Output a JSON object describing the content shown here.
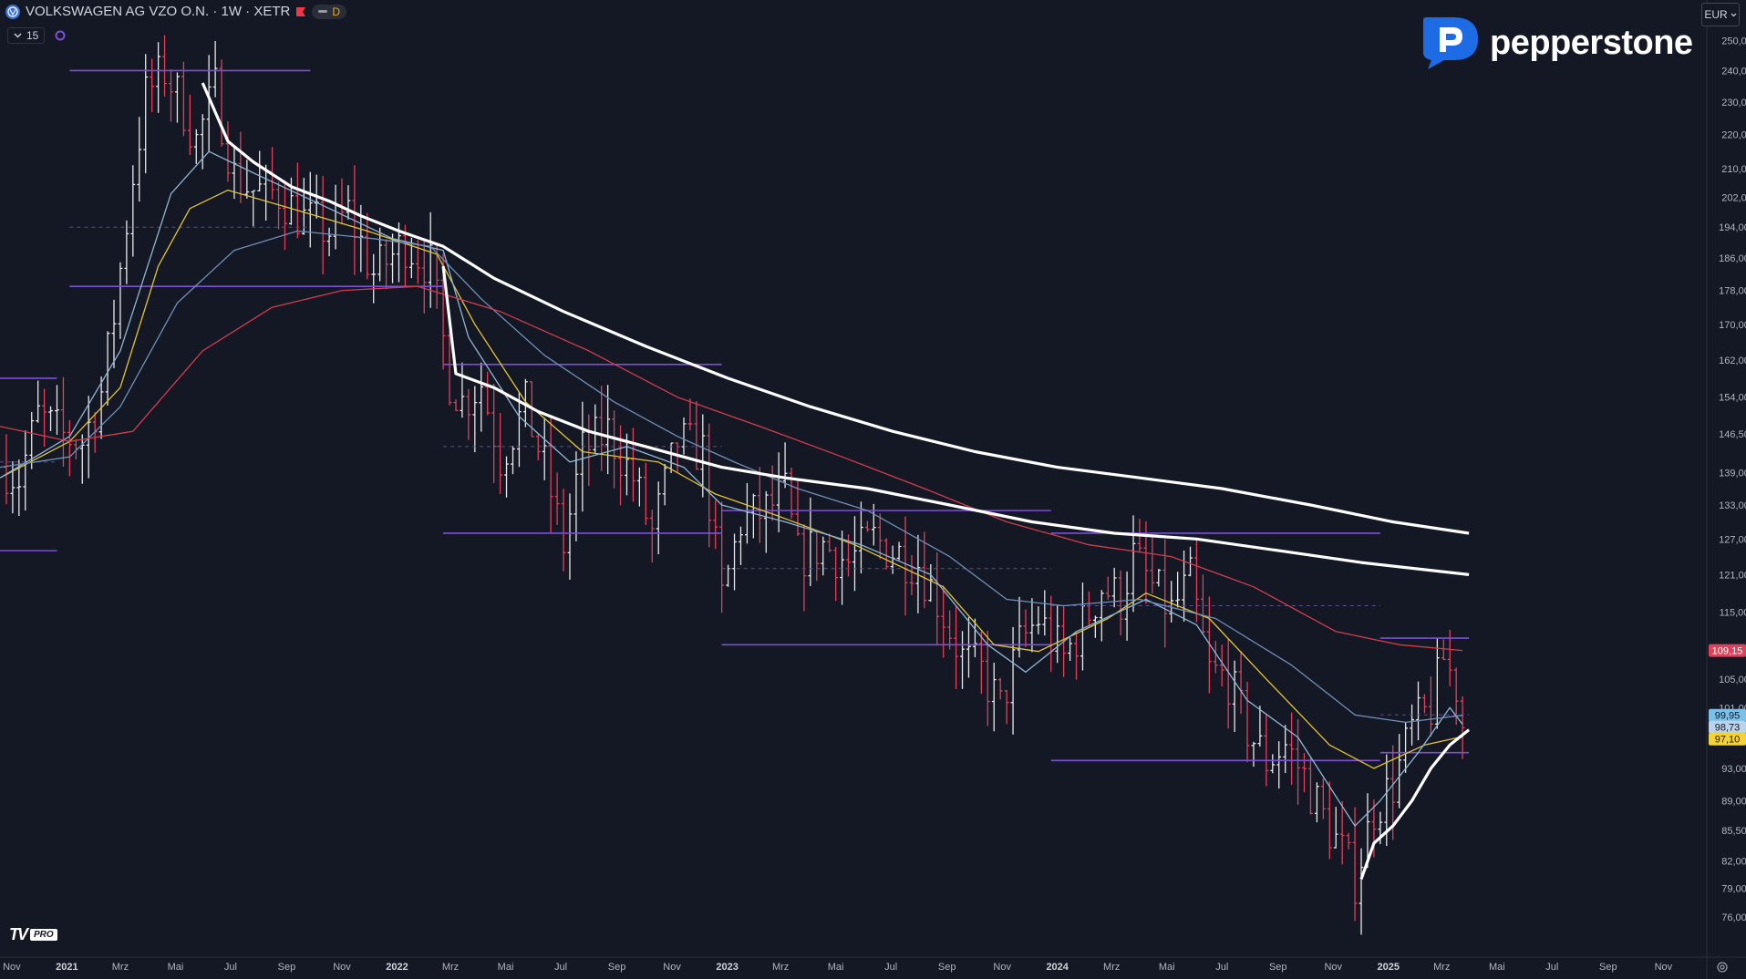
{
  "header": {
    "symbol": "VOLKSWAGEN AG VZO O.N. · 1W · XETR",
    "badge_letter": "D",
    "indicator_count": "15",
    "currency": "EUR"
  },
  "brand": {
    "name": "pepperstone"
  },
  "footer": {
    "platform": "TV",
    "tier": "PRO"
  },
  "colors": {
    "background": "#141824",
    "up_bar": "#e8e8e8",
    "down_bar": "#e0415a",
    "support_line": "#7b4fd6",
    "ma_yellow": "#e0c43a",
    "ma_lightblue": "#8fb6d6",
    "ma_blue": "#6f8fb8",
    "ma_red": "#d23d4c",
    "ma_white": "#ffffff"
  },
  "chart_data": {
    "type": "candlestick",
    "title": "VOLKSWAGEN AG VZO O.N. · 1W · XETR",
    "scale": "log",
    "ylim": [
      74.5,
      252
    ],
    "y_ticks": [
      "250,0",
      "240,0",
      "230,0",
      "220,0",
      "210,0",
      "202,0",
      "194,00",
      "186,00",
      "178,00",
      "170,00",
      "162,00",
      "154,00",
      "146,50",
      "139,00",
      "133,00",
      "127,00",
      "121,00",
      "115,00",
      "109,15",
      "105,00",
      "101,00",
      "93,00",
      "89,00",
      "85,50",
      "82,00",
      "79,00",
      "76,00"
    ],
    "x_labels": [
      "Nov",
      "2021",
      "Mrz",
      "Mai",
      "Jul",
      "Sep",
      "Nov",
      "2022",
      "Mrz",
      "Mai",
      "Jul",
      "Sep",
      "Nov",
      "2023",
      "Mrz",
      "Mai",
      "Jul",
      "Sep",
      "Nov",
      "2024",
      "Mrz",
      "Mai",
      "Jul",
      "Sep",
      "Nov",
      "2025",
      "Mrz",
      "Mai",
      "Jul",
      "Sep",
      "Nov"
    ],
    "x_range": [
      "2020-10-19",
      "2025-12-15"
    ],
    "x_label_dates": [
      "2020-11-01",
      "2021-01-01",
      "2021-03-01",
      "2021-05-01",
      "2021-07-01",
      "2021-09-01",
      "2021-11-01",
      "2022-01-01",
      "2022-03-01",
      "2022-05-01",
      "2022-07-01",
      "2022-09-01",
      "2022-11-01",
      "2023-01-01",
      "2023-03-01",
      "2023-05-01",
      "2023-07-01",
      "2023-09-01",
      "2023-11-01",
      "2024-01-01",
      "2024-03-01",
      "2024-05-01",
      "2024-07-01",
      "2024-09-01",
      "2024-11-01",
      "2025-01-01",
      "2025-03-01",
      "2025-05-01",
      "2025-07-01",
      "2025-09-01",
      "2025-11-01"
    ],
    "price_anchors": [
      [
        "2020-10-26",
        140
      ],
      [
        "2020-11-09",
        138
      ],
      [
        "2020-11-30",
        150
      ],
      [
        "2020-12-28",
        146
      ],
      [
        "2021-01-18",
        145
      ],
      [
        "2021-02-08",
        155
      ],
      [
        "2021-02-22",
        172
      ],
      [
        "2021-03-15",
        208
      ],
      [
        "2021-03-29",
        232
      ],
      [
        "2021-04-19",
        240
      ],
      [
        "2021-05-10",
        228
      ],
      [
        "2021-05-24",
        218
      ],
      [
        "2021-06-14",
        234
      ],
      [
        "2021-07-05",
        208
      ],
      [
        "2021-07-26",
        204
      ],
      [
        "2021-08-23",
        203
      ],
      [
        "2021-09-20",
        196
      ],
      [
        "2021-10-18",
        193
      ],
      [
        "2021-11-08",
        198
      ],
      [
        "2021-12-06",
        182
      ],
      [
        "2022-01-10",
        190
      ],
      [
        "2022-02-07",
        184
      ],
      [
        "2022-02-28",
        158
      ],
      [
        "2022-03-14",
        153
      ],
      [
        "2022-04-04",
        157
      ],
      [
        "2022-04-25",
        142
      ],
      [
        "2022-05-23",
        152
      ],
      [
        "2022-06-13",
        140
      ],
      [
        "2022-07-04",
        126
      ],
      [
        "2022-07-25",
        143
      ],
      [
        "2022-08-22",
        147
      ],
      [
        "2022-09-19",
        138
      ],
      [
        "2022-10-10",
        128
      ],
      [
        "2022-11-07",
        145
      ],
      [
        "2022-12-05",
        143
      ],
      [
        "2022-12-26",
        117
      ],
      [
        "2023-01-16",
        130
      ],
      [
        "2023-02-13",
        132
      ],
      [
        "2023-03-06",
        135
      ],
      [
        "2023-03-20",
        124
      ],
      [
        "2023-04-17",
        126
      ],
      [
        "2023-05-15",
        123
      ],
      [
        "2023-06-12",
        127
      ],
      [
        "2023-07-03",
        125
      ],
      [
        "2023-07-31",
        123
      ],
      [
        "2023-08-21",
        117
      ],
      [
        "2023-09-18",
        108
      ],
      [
        "2023-10-09",
        106
      ],
      [
        "2023-10-30",
        101
      ],
      [
        "2023-11-20",
        110
      ],
      [
        "2023-12-11",
        114
      ],
      [
        "2024-01-08",
        108
      ],
      [
        "2024-01-29",
        113
      ],
      [
        "2024-02-19",
        119
      ],
      [
        "2024-03-11",
        117
      ],
      [
        "2024-03-25",
        124
      ],
      [
        "2024-04-15",
        119
      ],
      [
        "2024-05-06",
        115
      ],
      [
        "2024-05-27",
        120
      ],
      [
        "2024-06-17",
        106
      ],
      [
        "2024-07-08",
        105
      ],
      [
        "2024-07-29",
        98
      ],
      [
        "2024-08-19",
        94
      ],
      [
        "2024-09-09",
        96
      ],
      [
        "2024-09-30",
        92
      ],
      [
        "2024-10-21",
        87
      ],
      [
        "2024-11-11",
        83
      ],
      [
        "2024-11-25",
        80
      ],
      [
        "2024-12-16",
        88
      ],
      [
        "2025-01-06",
        91
      ],
      [
        "2025-01-27",
        98
      ],
      [
        "2025-02-17",
        101
      ],
      [
        "2025-03-03",
        108
      ],
      [
        "2025-03-17",
        104
      ],
      [
        "2025-03-24",
        98.73
      ]
    ],
    "support_levels": [
      {
        "price": 240,
        "from": "2021-01-04",
        "to": "2021-09-27"
      },
      {
        "price": 179,
        "from": "2021-01-04",
        "to": "2022-02-21"
      },
      {
        "price": 158,
        "from": "2020-10-19",
        "to": "2020-12-21"
      },
      {
        "price": 125,
        "from": "2020-10-19",
        "to": "2020-12-21"
      },
      {
        "price": 161,
        "from": "2022-02-21",
        "to": "2022-12-26"
      },
      {
        "price": 128,
        "from": "2022-02-21",
        "to": "2022-12-26"
      },
      {
        "price": 132,
        "from": "2022-12-26",
        "to": "2023-12-25"
      },
      {
        "price": 110,
        "from": "2022-12-26",
        "to": "2023-12-25"
      },
      {
        "price": 128,
        "from": "2023-12-25",
        "to": "2024-12-23"
      },
      {
        "price": 94,
        "from": "2023-12-25",
        "to": "2024-12-23"
      },
      {
        "price": 111,
        "from": "2024-12-23",
        "to": "2025-03-31"
      },
      {
        "price": 95,
        "from": "2024-12-23",
        "to": "2025-03-31"
      }
    ],
    "dashed_levels": [
      {
        "price": 194,
        "from": "2021-01-04",
        "to": "2021-09-27"
      },
      {
        "price": 141,
        "from": "2020-10-19",
        "to": "2020-12-21"
      },
      {
        "price": 144,
        "from": "2022-02-21",
        "to": "2022-12-26"
      },
      {
        "price": 122,
        "from": "2022-12-26",
        "to": "2023-12-25"
      },
      {
        "price": 116,
        "from": "2023-12-25",
        "to": "2024-12-23"
      },
      {
        "price": 100,
        "from": "2024-12-23",
        "to": "2025-03-31"
      }
    ],
    "series": [
      {
        "color": "#e0c43a",
        "points": [
          [
            "2020-10-19",
            138
          ],
          [
            "2021-01-04",
            145
          ],
          [
            "2021-03-01",
            156
          ],
          [
            "2021-04-12",
            184
          ],
          [
            "2021-05-17",
            199
          ],
          [
            "2021-06-28",
            204
          ],
          [
            "2021-09-06",
            199
          ],
          [
            "2021-11-29",
            193
          ],
          [
            "2022-02-14",
            187
          ],
          [
            "2022-03-28",
            170
          ],
          [
            "2022-05-23",
            153
          ],
          [
            "2022-07-25",
            143
          ],
          [
            "2022-10-17",
            141
          ],
          [
            "2022-12-19",
            135
          ],
          [
            "2023-02-27",
            131
          ],
          [
            "2023-05-22",
            126
          ],
          [
            "2023-08-28",
            119
          ],
          [
            "2023-10-23",
            110
          ],
          [
            "2023-12-11",
            109
          ],
          [
            "2024-02-26",
            114
          ],
          [
            "2024-04-08",
            118
          ],
          [
            "2024-06-17",
            114
          ],
          [
            "2024-08-19",
            105
          ],
          [
            "2024-10-28",
            96
          ],
          [
            "2024-12-16",
            93
          ],
          [
            "2025-02-10",
            96
          ],
          [
            "2025-03-24",
            97.1
          ]
        ]
      },
      {
        "color": "#8fb6d6",
        "points": [
          [
            "2020-10-19",
            138
          ],
          [
            "2021-01-04",
            146
          ],
          [
            "2021-03-01",
            164
          ],
          [
            "2021-04-26",
            203
          ],
          [
            "2021-06-07",
            215
          ],
          [
            "2021-08-02",
            208
          ],
          [
            "2021-10-18",
            199
          ],
          [
            "2021-12-27",
            191
          ],
          [
            "2022-02-21",
            188
          ],
          [
            "2022-03-21",
            167
          ],
          [
            "2022-05-16",
            150
          ],
          [
            "2022-07-11",
            141
          ],
          [
            "2022-09-12",
            144
          ],
          [
            "2022-11-14",
            140
          ],
          [
            "2022-12-26",
            133
          ],
          [
            "2023-03-06",
            130
          ],
          [
            "2023-05-29",
            126
          ],
          [
            "2023-08-14",
            121
          ],
          [
            "2023-10-16",
            110
          ],
          [
            "2023-11-27",
            106
          ],
          [
            "2024-01-22",
            112
          ],
          [
            "2024-04-08",
            117
          ],
          [
            "2024-06-03",
            113
          ],
          [
            "2024-07-29",
            102
          ],
          [
            "2024-09-23",
            97
          ],
          [
            "2024-11-25",
            86
          ],
          [
            "2024-12-23",
            89
          ],
          [
            "2025-02-03",
            95
          ],
          [
            "2025-03-10",
            101
          ],
          [
            "2025-03-24",
            98.73
          ]
        ]
      },
      {
        "color": "#6f8fb8",
        "points": [
          [
            "2020-10-19",
            140
          ],
          [
            "2021-01-04",
            142
          ],
          [
            "2021-03-01",
            152
          ],
          [
            "2021-05-03",
            175
          ],
          [
            "2021-07-05",
            188
          ],
          [
            "2021-09-13",
            193
          ],
          [
            "2021-12-06",
            191
          ],
          [
            "2022-02-07",
            189
          ],
          [
            "2022-04-04",
            176
          ],
          [
            "2022-06-13",
            163
          ],
          [
            "2022-08-29",
            153
          ],
          [
            "2022-11-07",
            146
          ],
          [
            "2023-01-09",
            141
          ],
          [
            "2023-03-20",
            136
          ],
          [
            "2023-06-05",
            132
          ],
          [
            "2023-09-04",
            124
          ],
          [
            "2023-11-06",
            117
          ],
          [
            "2024-01-08",
            116
          ],
          [
            "2024-04-01",
            117
          ],
          [
            "2024-06-24",
            114
          ],
          [
            "2024-09-16",
            107
          ],
          [
            "2024-11-25",
            100
          ],
          [
            "2025-01-20",
            99
          ],
          [
            "2025-03-24",
            99.95
          ]
        ]
      },
      {
        "color": "#d23d4c",
        "points": [
          [
            "2020-10-19",
            148
          ],
          [
            "2021-01-04",
            145
          ],
          [
            "2021-03-15",
            147
          ],
          [
            "2021-05-31",
            164
          ],
          [
            "2021-08-16",
            174
          ],
          [
            "2021-11-01",
            178
          ],
          [
            "2022-01-24",
            179
          ],
          [
            "2022-04-25",
            173
          ],
          [
            "2022-08-01",
            164
          ],
          [
            "2022-11-07",
            154
          ],
          [
            "2023-02-06",
            148
          ],
          [
            "2023-05-08",
            142
          ],
          [
            "2023-08-07",
            136
          ],
          [
            "2023-11-06",
            130
          ],
          [
            "2024-02-05",
            126
          ],
          [
            "2024-05-06",
            124
          ],
          [
            "2024-08-05",
            119
          ],
          [
            "2024-11-04",
            112
          ],
          [
            "2025-01-13",
            110
          ],
          [
            "2025-03-24",
            109.15
          ]
        ]
      },
      {
        "color": "#ffffff",
        "width": 3.2,
        "points": [
          [
            "2021-05-31",
            236
          ],
          [
            "2021-06-28",
            218
          ],
          [
            "2021-07-26",
            212
          ],
          [
            "2021-09-06",
            205
          ],
          [
            "2021-10-18",
            201
          ],
          [
            "2021-11-22",
            197
          ],
          [
            "2022-01-03",
            193
          ],
          [
            "2022-02-21",
            189
          ],
          [
            "2022-04-18",
            181
          ],
          [
            "2022-07-04",
            173
          ],
          [
            "2022-10-03",
            165
          ],
          [
            "2023-01-02",
            158
          ],
          [
            "2023-04-03",
            152
          ],
          [
            "2023-07-03",
            147
          ],
          [
            "2023-10-02",
            143
          ],
          [
            "2024-01-01",
            140
          ],
          [
            "2024-04-01",
            138
          ],
          [
            "2024-07-01",
            136
          ],
          [
            "2024-10-07",
            133
          ],
          [
            "2025-01-06",
            130
          ],
          [
            "2025-03-31",
            128
          ]
        ]
      },
      {
        "color": "#ffffff",
        "width": 3.2,
        "points": [
          [
            "2022-02-21",
            184
          ],
          [
            "2022-03-07",
            159
          ],
          [
            "2022-04-18",
            156
          ],
          [
            "2022-06-06",
            151
          ],
          [
            "2022-08-01",
            147
          ],
          [
            "2022-10-03",
            144
          ],
          [
            "2022-12-26",
            140
          ],
          [
            "2023-03-06",
            138
          ],
          [
            "2023-06-05",
            136
          ],
          [
            "2023-09-04",
            133
          ],
          [
            "2023-12-04",
            130
          ],
          [
            "2024-03-04",
            128
          ],
          [
            "2024-06-03",
            127
          ],
          [
            "2024-09-02",
            125
          ],
          [
            "2024-12-02",
            123
          ],
          [
            "2025-03-31",
            121
          ]
        ]
      },
      {
        "color": "#ffffff",
        "width": 3.2,
        "points": [
          [
            "2024-12-02",
            80
          ],
          [
            "2024-12-16",
            84
          ],
          [
            "2025-01-06",
            86
          ],
          [
            "2025-01-27",
            89
          ],
          [
            "2025-02-17",
            93
          ],
          [
            "2025-03-10",
            96
          ],
          [
            "2025-03-31",
            98
          ]
        ]
      }
    ],
    "last_values": [
      {
        "label": "109,15",
        "price": 109.15,
        "bg": "#e0415a",
        "fg": "#ffffff"
      },
      {
        "label": "99,95",
        "price": 99.95,
        "bg": "#7cc0e8",
        "fg": "#141824"
      },
      {
        "label": "98,73",
        "price": 98.73,
        "bg": "#b9d3ea",
        "fg": "#141824"
      },
      {
        "label": "97,10",
        "price": 97.1,
        "bg": "#f2d13a",
        "fg": "#141824"
      }
    ]
  }
}
